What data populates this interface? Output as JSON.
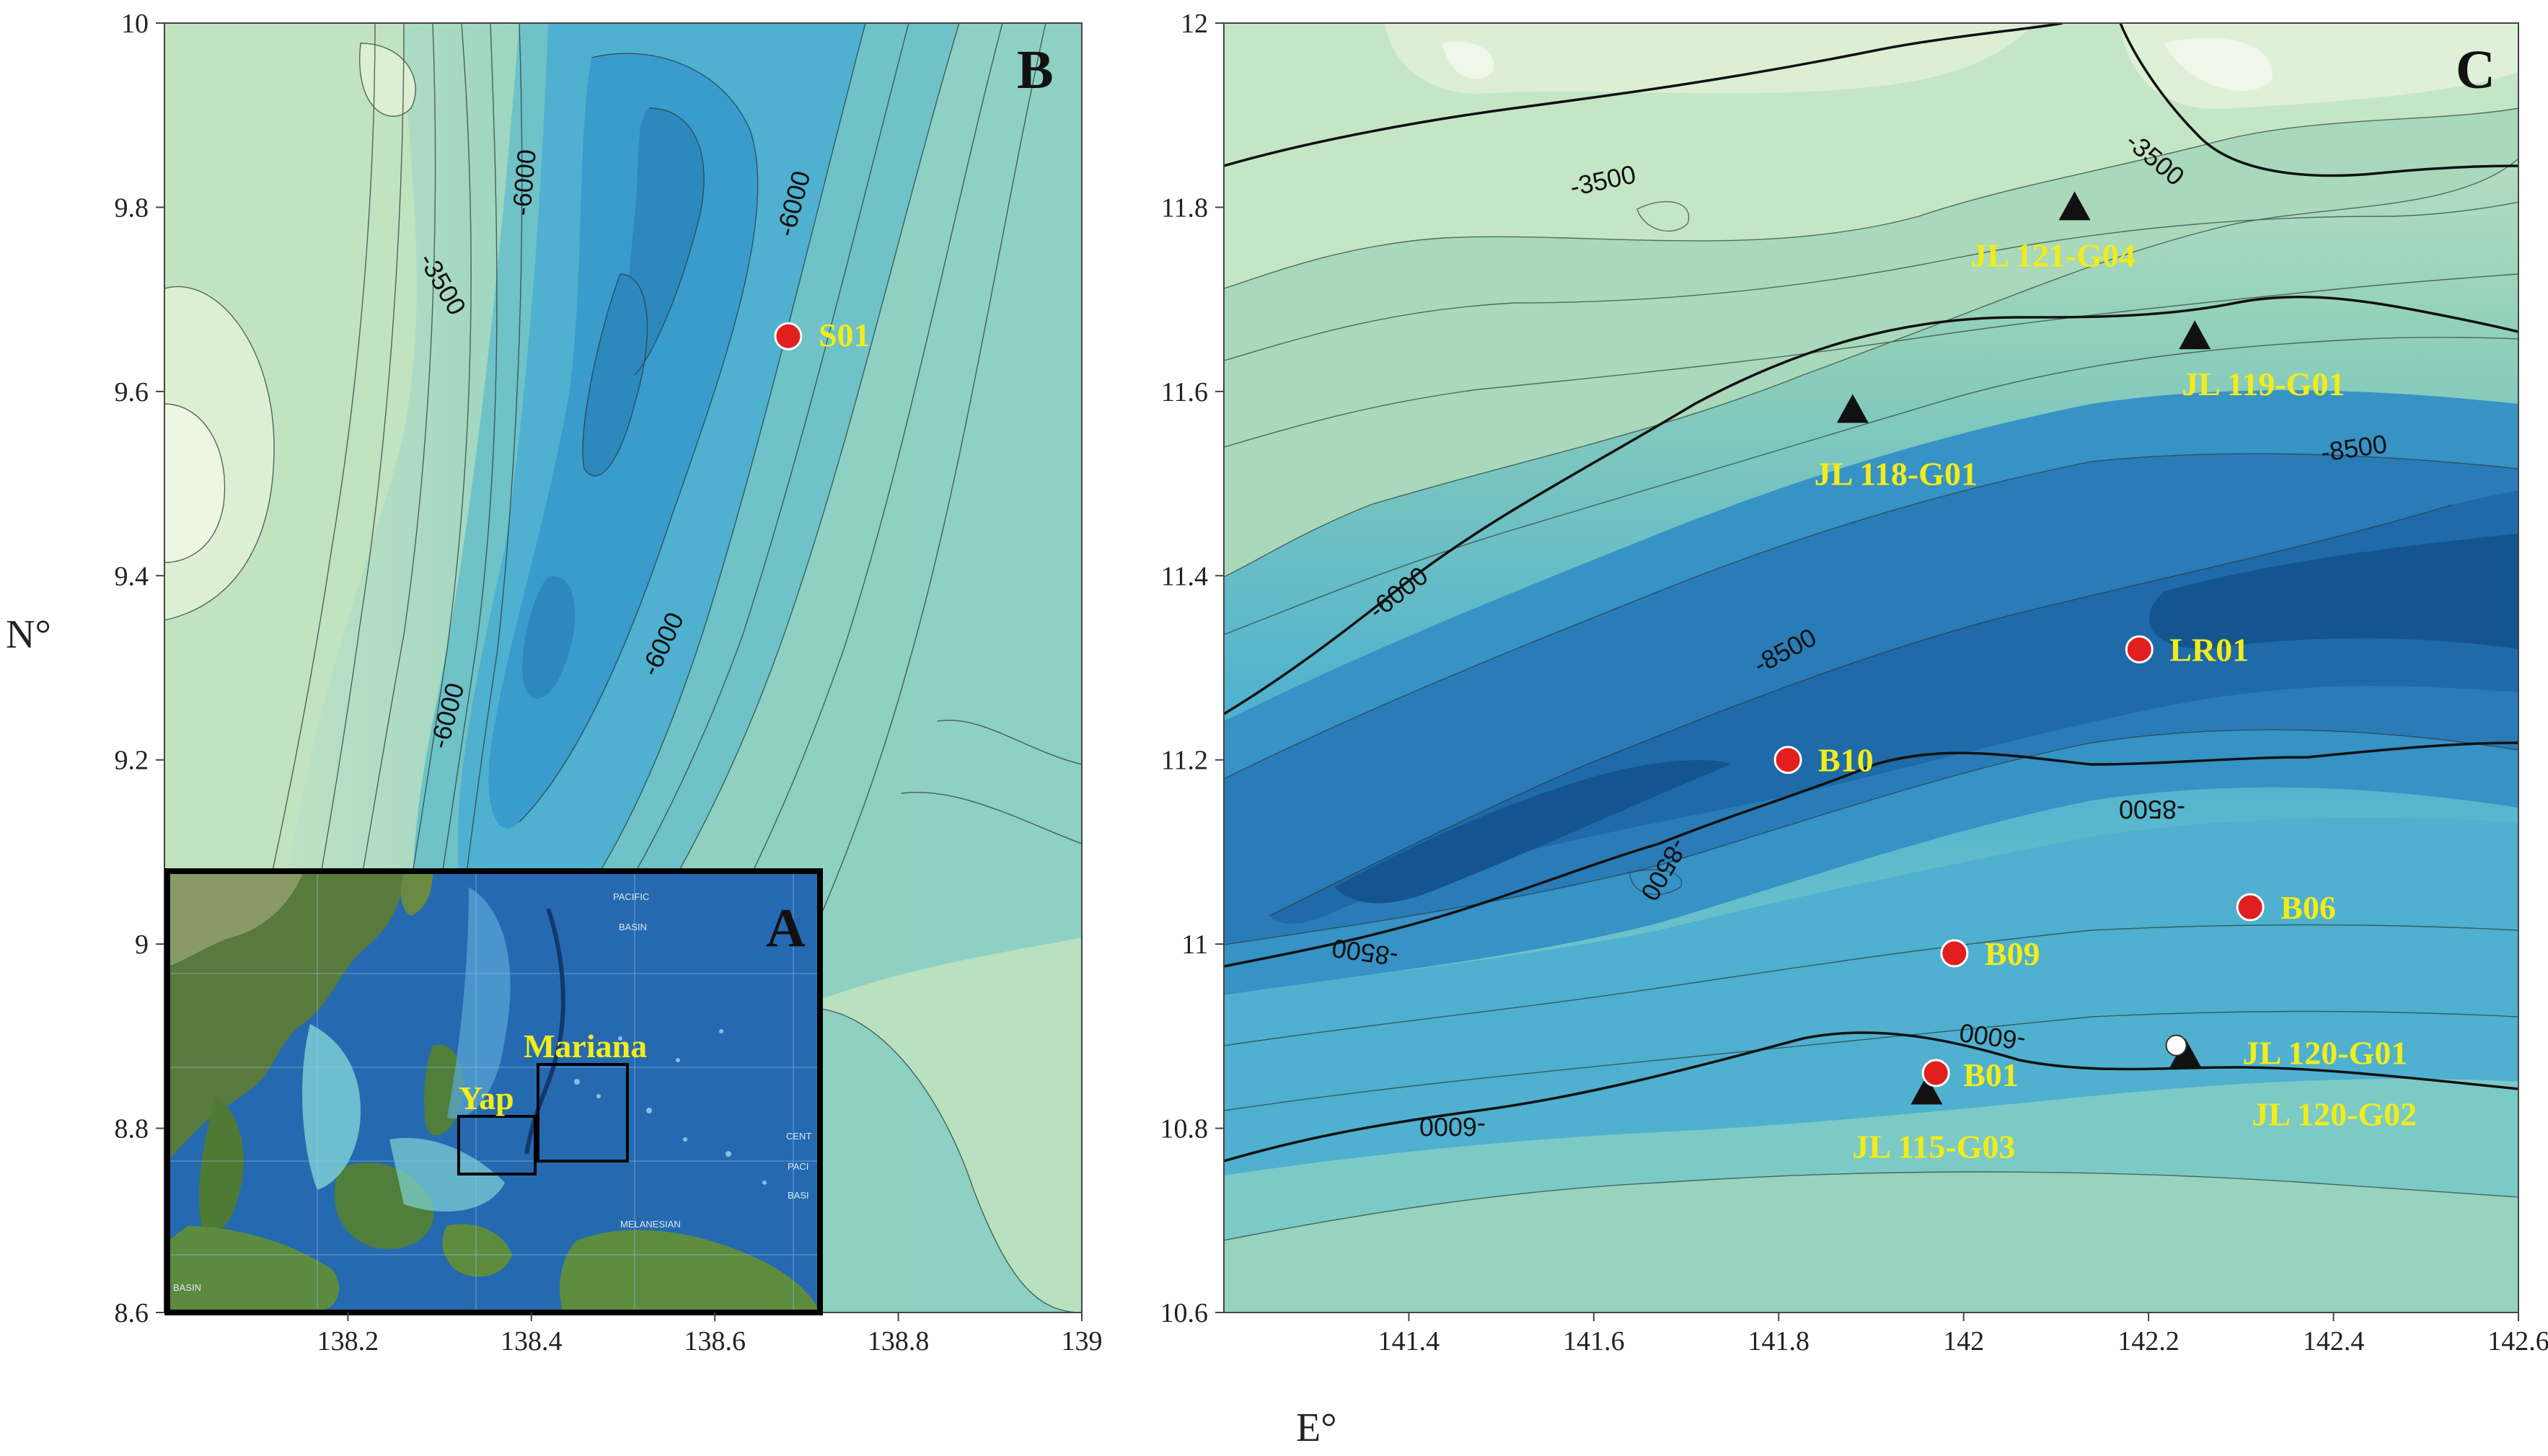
{
  "axes": {
    "y_title": "N°",
    "x_title": "E°"
  },
  "panel_b": {
    "letter": "B",
    "y_ticks": [
      "10",
      "9.8",
      "9.6",
      "9.4",
      "9.2",
      "9",
      "8.8",
      "8.6"
    ],
    "x_ticks": [
      "138.2",
      "138.4",
      "138.6",
      "138.8",
      "139"
    ],
    "contour_labels": [
      "-6000",
      "-6000",
      "-3500",
      "-6000",
      "-6000"
    ],
    "sites": [
      {
        "label": "S01",
        "lon": 138.68,
        "lat": 9.66,
        "marker": "red-circle"
      }
    ]
  },
  "panel_c": {
    "letter": "C",
    "y_ticks": [
      "12",
      "11.8",
      "11.6",
      "11.4",
      "11.2",
      "11",
      "10.8",
      "10.6"
    ],
    "x_ticks": [
      "141.4",
      "141.6",
      "141.8",
      "142",
      "142.2",
      "142.4",
      "142.6"
    ],
    "contour_labels": [
      "-3500",
      "-3500",
      "-8500",
      "-6000",
      "-8500",
      "-8500",
      "-8500",
      "-8500",
      "-6000",
      "-6000"
    ],
    "sites": [
      {
        "label": "JL 121-G04",
        "lon": 142.12,
        "lat": 11.8,
        "marker": "black-triangle"
      },
      {
        "label": "JL 119-G01",
        "lon": 142.25,
        "lat": 11.66,
        "marker": "black-triangle"
      },
      {
        "label": "JL 118-G01",
        "lon": 141.88,
        "lat": 11.58,
        "marker": "black-triangle"
      },
      {
        "label": "LR01",
        "lon": 142.19,
        "lat": 11.32,
        "marker": "red-circle"
      },
      {
        "label": "B10",
        "lon": 141.81,
        "lat": 11.2,
        "marker": "red-circle"
      },
      {
        "label": "B06",
        "lon": 142.31,
        "lat": 11.04,
        "marker": "red-circle"
      },
      {
        "label": "B09",
        "lon": 141.99,
        "lat": 10.99,
        "marker": "red-circle"
      },
      {
        "label": "JL 120-G01",
        "lon": 142.23,
        "lat": 10.89,
        "marker": "white-circle"
      },
      {
        "label": "JL 120-G02",
        "lon": 142.24,
        "lat": 10.88,
        "marker": "black-triangle"
      },
      {
        "label": "B01",
        "lon": 141.97,
        "lat": 10.86,
        "marker": "red-circle"
      },
      {
        "label": "JL 115-G03",
        "lon": 141.96,
        "lat": 10.84,
        "marker": "black-triangle"
      }
    ]
  },
  "inset_a": {
    "letter": "A",
    "region_labels": [
      "Mariana",
      "Yap"
    ],
    "basemap_labels": [
      "PACIFIC",
      "BASIN",
      "CENT",
      "PACI",
      "BASI",
      "MELANESIAN",
      "BASIN"
    ]
  },
  "colors": {
    "red_site": "#e21f1f",
    "site_label": "#f2ec1a",
    "deep": "#0e4f8e",
    "mid": "#3a9fcb",
    "shallow": "#a9d6b1",
    "highest": "#e6f2d9"
  }
}
